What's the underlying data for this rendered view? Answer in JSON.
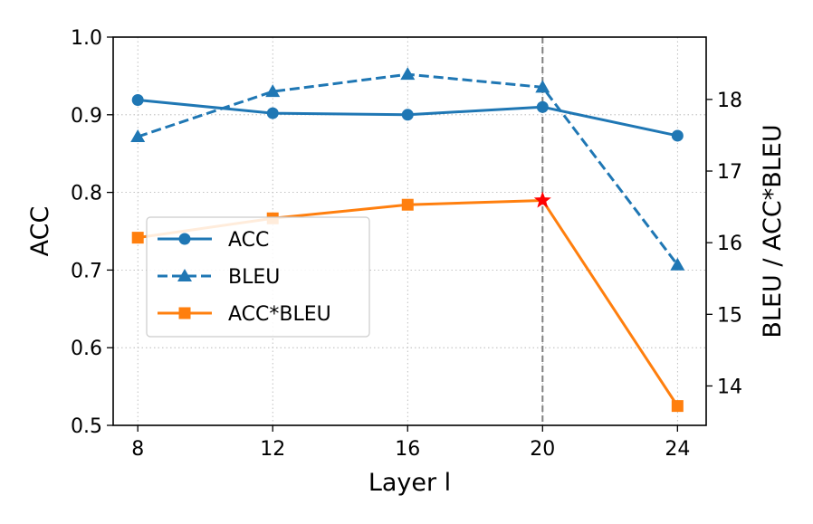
{
  "chart_data": {
    "type": "line",
    "xlabel": "Layer l",
    "ylabel_left": "ACC",
    "ylabel_right": "BLEU / ACC*BLEU",
    "x": [
      8,
      12,
      16,
      20,
      24
    ],
    "x_ticks": [
      "8",
      "12",
      "16",
      "20",
      "24"
    ],
    "xlim": [
      7.27,
      24.85
    ],
    "ylim_left": [
      0.5,
      1.0
    ],
    "yticks_left": [
      "0.5",
      "0.6",
      "0.7",
      "0.8",
      "0.9",
      "1.0"
    ],
    "ylim_right": [
      13.45,
      18.87
    ],
    "yticks_right": [
      "14",
      "15",
      "16",
      "17",
      "18"
    ],
    "grid": true,
    "series": [
      {
        "name": "ACC",
        "axis": "left",
        "values": [
          0.919,
          0.902,
          0.9,
          0.91,
          0.873
        ],
        "color": "#1f77b4",
        "marker": "circle",
        "linestyle": "solid"
      },
      {
        "name": "BLEU",
        "axis": "right",
        "values": [
          17.48,
          18.11,
          18.35,
          18.17,
          15.69
        ],
        "color": "#1f77b4",
        "marker": "triangle",
        "linestyle": "dashed"
      },
      {
        "name": "ACC*BLEU",
        "axis": "right",
        "values": [
          16.07,
          16.34,
          16.53,
          16.59,
          13.72
        ],
        "color": "#ff7f0e",
        "marker": "square",
        "linestyle": "solid"
      }
    ],
    "highlight": {
      "x": 20,
      "series": "ACC*BLEU",
      "marker": "star",
      "color": "#ff0000"
    },
    "vline": {
      "x": 20,
      "color": "#808080",
      "linestyle": "dashed"
    },
    "legend": {
      "position": "center-left",
      "entries": [
        "ACC",
        "BLEU",
        "ACC*BLEU"
      ]
    }
  }
}
